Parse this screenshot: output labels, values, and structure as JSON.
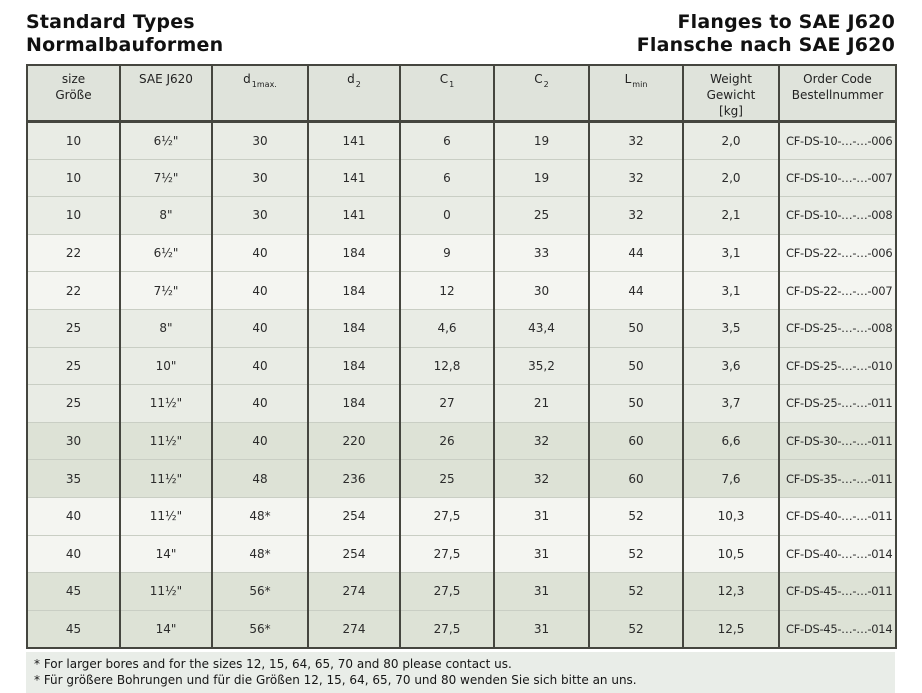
{
  "header": {
    "title_en": "Standard Types",
    "title_de": "Normalbauformen",
    "subtitle_en": "Flanges to SAE J620",
    "subtitle_de": "Flansche nach SAE J620"
  },
  "table": {
    "columns": [
      {
        "id": "size",
        "lines": [
          "size",
          "Größe"
        ]
      },
      {
        "id": "sae",
        "lines": [
          "SAE J620"
        ]
      },
      {
        "id": "d1max",
        "base": "d",
        "sub": "1max."
      },
      {
        "id": "d2",
        "base": "d",
        "sub": "2"
      },
      {
        "id": "c1",
        "base": "C",
        "sub": "1"
      },
      {
        "id": "c2",
        "base": "C",
        "sub": "2"
      },
      {
        "id": "lmin",
        "base": "L",
        "sub": "min"
      },
      {
        "id": "weight",
        "lines": [
          "Weight",
          "Gewicht",
          "[kg]"
        ]
      },
      {
        "id": "order",
        "lines": [
          "Order Code",
          "Bestellnummer"
        ]
      }
    ],
    "rows": [
      {
        "shade": "gray",
        "cells": [
          "10",
          "6½\"",
          "30",
          "141",
          "6",
          "19",
          "32",
          "2,0",
          "CF-DS-10-…-…-006"
        ]
      },
      {
        "shade": "gray",
        "cells": [
          "10",
          "7½\"",
          "30",
          "141",
          "6",
          "19",
          "32",
          "2,0",
          "CF-DS-10-…-…-007"
        ]
      },
      {
        "shade": "gray",
        "cells": [
          "10",
          "8\"",
          "30",
          "141",
          "0",
          "25",
          "32",
          "2,1",
          "CF-DS-10-…-…-008"
        ]
      },
      {
        "shade": "white",
        "cells": [
          "22",
          "6½\"",
          "40",
          "184",
          "9",
          "33",
          "44",
          "3,1",
          "CF-DS-22-…-…-006"
        ]
      },
      {
        "shade": "white",
        "cells": [
          "22",
          "7½\"",
          "40",
          "184",
          "12",
          "30",
          "44",
          "3,1",
          "CF-DS-22-…-…-007"
        ]
      },
      {
        "shade": "gray",
        "cells": [
          "25",
          "8\"",
          "40",
          "184",
          "4,6",
          "43,4",
          "50",
          "3,5",
          "CF-DS-25-…-…-008"
        ]
      },
      {
        "shade": "gray",
        "cells": [
          "25",
          "10\"",
          "40",
          "184",
          "12,8",
          "35,2",
          "50",
          "3,6",
          "CF-DS-25-…-…-010"
        ]
      },
      {
        "shade": "gray",
        "cells": [
          "25",
          "11½\"",
          "40",
          "184",
          "27",
          "21",
          "50",
          "3,7",
          "CF-DS-25-…-…-011"
        ]
      },
      {
        "shade": "dark",
        "cells": [
          "30",
          "11½\"",
          "40",
          "220",
          "26",
          "32",
          "60",
          "6,6",
          "CF-DS-30-…-…-011"
        ]
      },
      {
        "shade": "dark",
        "cells": [
          "35",
          "11½\"",
          "48",
          "236",
          "25",
          "32",
          "60",
          "7,6",
          "CF-DS-35-…-…-011"
        ]
      },
      {
        "shade": "white",
        "cells": [
          "40",
          "11½\"",
          "48*",
          "254",
          "27,5",
          "31",
          "52",
          "10,3",
          "CF-DS-40-…-…-011"
        ]
      },
      {
        "shade": "white",
        "cells": [
          "40",
          "14\"",
          "48*",
          "254",
          "27,5",
          "31",
          "52",
          "10,5",
          "CF-DS-40-…-…-014"
        ]
      },
      {
        "shade": "dark",
        "cells": [
          "45",
          "11½\"",
          "56*",
          "274",
          "27,5",
          "31",
          "52",
          "12,3",
          "CF-DS-45-…-…-011"
        ]
      },
      {
        "shade": "dark",
        "cells": [
          "45",
          "14\"",
          "56*",
          "274",
          "27,5",
          "31",
          "52",
          "12,5",
          "CF-DS-45-…-…-014"
        ]
      }
    ]
  },
  "footnotes": [
    "* For larger bores and for the sizes 12, 15, 64, 65, 70 and 80 please contact us.",
    "* Für größere Bohrungen und für die Größen 12, 15, 64, 65, 70 und 80 wenden Sie sich bitte an uns."
  ],
  "colors": {
    "border_dark": "#45463f",
    "border_light": "#c9cec4",
    "header_bg": "#dfe3db",
    "row_gray": "#e9ece5",
    "row_white": "#f4f5f1",
    "row_dark": "#dde2d6",
    "footnote_bg": "#e9ede8"
  }
}
